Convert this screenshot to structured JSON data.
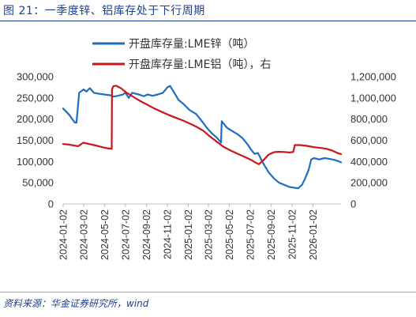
{
  "figure": {
    "title": "图 21：一季度锌、铝库存处于下行周期",
    "source": "资料来源：华金证券研究所，wind"
  },
  "chart_data": {
    "type": "line",
    "series": [
      {
        "name": "开盘库存量:LME锌（吨）",
        "axis": "left",
        "color": "#1f6fbf",
        "points": [
          [
            "2024-01-02",
            225000
          ],
          [
            "2024-01-20",
            210000
          ],
          [
            "2024-02-05",
            192000
          ],
          [
            "2024-02-10",
            192000
          ],
          [
            "2024-02-18",
            262000
          ],
          [
            "2024-03-02",
            270000
          ],
          [
            "2024-03-10",
            265000
          ],
          [
            "2024-03-20",
            273000
          ],
          [
            "2024-04-01",
            262000
          ],
          [
            "2024-04-15",
            260000
          ],
          [
            "2024-05-01",
            258000
          ],
          [
            "2024-05-20",
            256000
          ],
          [
            "2024-05-28",
            253000
          ],
          [
            "2024-06-10",
            255000
          ],
          [
            "2024-06-25",
            258000
          ],
          [
            "2024-07-02",
            262000
          ],
          [
            "2024-07-12",
            250000
          ],
          [
            "2024-07-22",
            262000
          ],
          [
            "2024-08-10",
            258000
          ],
          [
            "2024-08-25",
            254000
          ],
          [
            "2024-09-05",
            258000
          ],
          [
            "2024-09-20",
            255000
          ],
          [
            "2024-10-05",
            258000
          ],
          [
            "2024-10-20",
            262000
          ],
          [
            "2024-11-02",
            275000
          ],
          [
            "2024-11-10",
            278000
          ],
          [
            "2024-11-20",
            265000
          ],
          [
            "2024-12-05",
            245000
          ],
          [
            "2024-12-20",
            235000
          ],
          [
            "2025-01-05",
            222000
          ],
          [
            "2025-01-25",
            212000
          ],
          [
            "2025-02-10",
            196000
          ],
          [
            "2025-02-25",
            180000
          ],
          [
            "2025-03-10",
            168000
          ],
          [
            "2025-03-28",
            155000
          ],
          [
            "2025-04-08",
            145000
          ],
          [
            "2025-04-10",
            195000
          ],
          [
            "2025-04-25",
            180000
          ],
          [
            "2025-05-10",
            172000
          ],
          [
            "2025-05-25",
            165000
          ],
          [
            "2025-06-10",
            155000
          ],
          [
            "2025-06-25",
            140000
          ],
          [
            "2025-07-05",
            128000
          ],
          [
            "2025-07-15",
            118000
          ],
          [
            "2025-07-25",
            120000
          ],
          [
            "2025-08-10",
            95000
          ],
          [
            "2025-08-25",
            75000
          ],
          [
            "2025-09-10",
            60000
          ],
          [
            "2025-09-25",
            50000
          ],
          [
            "2025-10-10",
            45000
          ],
          [
            "2025-10-25",
            40000
          ],
          [
            "2025-11-10",
            38000
          ],
          [
            "2025-11-20",
            37000
          ],
          [
            "2025-12-01",
            45000
          ],
          [
            "2025-12-10",
            60000
          ],
          [
            "2025-12-20",
            80000
          ],
          [
            "2025-12-28",
            105000
          ],
          [
            "2026-01-05",
            108000
          ],
          [
            "2026-01-20",
            105000
          ],
          [
            "2026-02-05",
            108000
          ],
          [
            "2026-02-20",
            106000
          ],
          [
            "2026-03-05",
            104000
          ],
          [
            "2026-03-20",
            100000
          ],
          [
            "2026-03-25",
            98000
          ]
        ]
      },
      {
        "name": "开盘库存量:LME铝（吨），右",
        "axis": "right",
        "color": "#c8161d",
        "points": [
          [
            "2024-01-02",
            565000
          ],
          [
            "2024-01-20",
            560000
          ],
          [
            "2024-02-05",
            550000
          ],
          [
            "2024-02-15",
            545000
          ],
          [
            "2024-03-01",
            578000
          ],
          [
            "2024-03-15",
            568000
          ],
          [
            "2024-04-01",
            555000
          ],
          [
            "2024-04-20",
            540000
          ],
          [
            "2024-05-10",
            525000
          ],
          [
            "2024-05-23",
            520000
          ],
          [
            "2024-05-24",
            1080000
          ],
          [
            "2024-05-28",
            1110000
          ],
          [
            "2024-06-05",
            1115000
          ],
          [
            "2024-06-20",
            1090000
          ],
          [
            "2024-07-05",
            1050000
          ],
          [
            "2024-07-25",
            1010000
          ],
          [
            "2024-08-15",
            970000
          ],
          [
            "2024-09-05",
            935000
          ],
          [
            "2024-09-25",
            900000
          ],
          [
            "2024-10-15",
            870000
          ],
          [
            "2024-11-05",
            840000
          ],
          [
            "2024-11-25",
            815000
          ],
          [
            "2024-12-15",
            790000
          ],
          [
            "2025-01-05",
            760000
          ],
          [
            "2025-01-25",
            730000
          ],
          [
            "2025-02-15",
            690000
          ],
          [
            "2025-03-05",
            640000
          ],
          [
            "2025-03-25",
            590000
          ],
          [
            "2025-04-15",
            540000
          ],
          [
            "2025-05-05",
            505000
          ],
          [
            "2025-05-25",
            475000
          ],
          [
            "2025-06-15",
            445000
          ],
          [
            "2025-07-05",
            415000
          ],
          [
            "2025-07-18",
            390000
          ],
          [
            "2025-07-28",
            375000
          ],
          [
            "2025-08-10",
            412000
          ],
          [
            "2025-08-25",
            465000
          ],
          [
            "2025-09-10",
            488000
          ],
          [
            "2025-09-25",
            492000
          ],
          [
            "2025-10-10",
            490000
          ],
          [
            "2025-10-25",
            485000
          ],
          [
            "2025-11-05",
            490000
          ],
          [
            "2025-11-10",
            555000
          ],
          [
            "2025-11-25",
            555000
          ],
          [
            "2025-12-15",
            548000
          ],
          [
            "2026-01-05",
            535000
          ],
          [
            "2026-01-25",
            528000
          ],
          [
            "2026-02-10",
            520000
          ],
          [
            "2026-02-28",
            502000
          ],
          [
            "2026-03-15",
            480000
          ],
          [
            "2026-03-25",
            470000
          ]
        ]
      }
    ],
    "x_range": [
      "2024-01-02",
      "2026-03-25"
    ],
    "x_ticks": [
      "2024-01-02",
      "2024-03-02",
      "2024-05-02",
      "2024-07-02",
      "2024-09-02",
      "2024-11-02",
      "2025-01-02",
      "2025-03-02",
      "2025-05-02",
      "2025-07-02",
      "2025-09-02",
      "2025-11-02",
      "2026-01-02"
    ],
    "y_left": {
      "min": 0,
      "max": 300000,
      "ticks": [
        "0",
        "50,000",
        "100,000",
        "150,000",
        "200,000",
        "250,000",
        "300,000"
      ]
    },
    "y_right": {
      "min": 0,
      "max": 1200000,
      "ticks": [
        "0",
        "200,000",
        "400,000",
        "600,000",
        "800,000",
        "1,000,000",
        "1,200,000"
      ]
    },
    "legend_position": "top",
    "grid": false
  }
}
